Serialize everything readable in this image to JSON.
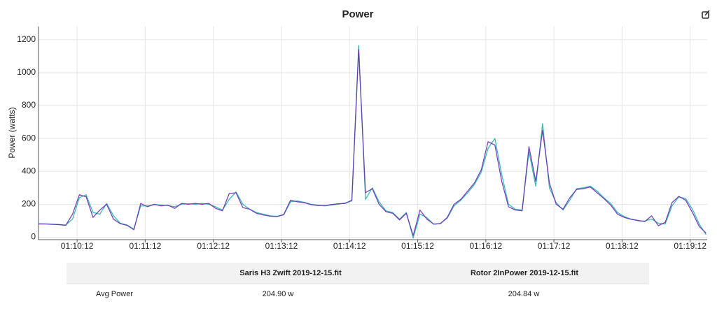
{
  "chart_data": {
    "type": "line",
    "title": "Power",
    "y_label": "Power (watts)",
    "x": [
      4178,
      4184,
      4190,
      4196,
      4202,
      4208,
      4214,
      4220,
      4226,
      4232,
      4238,
      4244,
      4250,
      4256,
      4262,
      4268,
      4274,
      4280,
      4286,
      4292,
      4298,
      4304,
      4310,
      4316,
      4322,
      4328,
      4334,
      4340,
      4346,
      4352,
      4358,
      4364,
      4370,
      4376,
      4382,
      4388,
      4394,
      4400,
      4406,
      4412,
      4418,
      4424,
      4430,
      4436,
      4442,
      4448,
      4454,
      4460,
      4466,
      4472,
      4478,
      4484,
      4490,
      4496,
      4502,
      4508,
      4514,
      4520,
      4526,
      4532,
      4538,
      4544,
      4550,
      4556,
      4562,
      4568,
      4574,
      4580,
      4586,
      4592,
      4598,
      4604,
      4610,
      4616,
      4622,
      4628,
      4634,
      4640,
      4646,
      4652,
      4658,
      4664,
      4670,
      4676,
      4682,
      4688,
      4694,
      4700,
      4706,
      4712,
      4718,
      4724,
      4730,
      4736,
      4742,
      4748,
      4754,
      4760,
      4766
    ],
    "series": [
      {
        "color": "#26b5a6",
        "values": [
          82,
          81,
          79,
          77,
          74,
          110,
          240,
          258,
          150,
          140,
          205,
          130,
          85,
          74,
          50,
          190,
          190,
          198,
          195,
          192,
          185,
          200,
          203,
          200,
          205,
          200,
          185,
          165,
          230,
          275,
          200,
          170,
          150,
          140,
          130,
          127,
          135,
          215,
          220,
          212,
          200,
          195,
          190,
          196,
          200,
          208,
          220,
          1165,
          230,
          300,
          215,
          160,
          150,
          110,
          150,
          -5,
          140,
          120,
          78,
          84,
          115,
          190,
          225,
          270,
          320,
          395,
          540,
          600,
          380,
          200,
          170,
          165,
          520,
          310,
          690,
          300,
          210,
          165,
          225,
          295,
          300,
          310,
          280,
          240,
          205,
          150,
          125,
          110,
          100,
          98,
          110,
          85,
          80,
          190,
          245,
          235,
          170,
          80,
          15
        ]
      },
      {
        "color": "#6a2fb8",
        "values": [
          80,
          80,
          78,
          76,
          72,
          140,
          258,
          245,
          120,
          165,
          200,
          110,
          82,
          72,
          45,
          205,
          185,
          200,
          190,
          195,
          175,
          205,
          200,
          205,
          200,
          205,
          175,
          160,
          265,
          270,
          180,
          170,
          145,
          135,
          128,
          125,
          138,
          225,
          215,
          210,
          198,
          192,
          192,
          198,
          203,
          205,
          225,
          1140,
          270,
          295,
          200,
          155,
          145,
          105,
          145,
          10,
          165,
          110,
          80,
          82,
          120,
          200,
          230,
          280,
          330,
          410,
          580,
          560,
          340,
          185,
          165,
          160,
          550,
          340,
          650,
          330,
          200,
          170,
          240,
          290,
          295,
          305,
          270,
          235,
          195,
          140,
          120,
          108,
          102,
          95,
          130,
          70,
          90,
          210,
          248,
          225,
          150,
          65,
          25
        ]
      }
    ],
    "xlim": [
      4178,
      4767
    ],
    "xticks": [
      {
        "value": 4212,
        "label": "01:10:12"
      },
      {
        "value": 4272,
        "label": "01:11:12"
      },
      {
        "value": 4332,
        "label": "01:12:12"
      },
      {
        "value": 4392,
        "label": "01:13:12"
      },
      {
        "value": 4452,
        "label": "01:14:12"
      },
      {
        "value": 4512,
        "label": "01:15:12"
      },
      {
        "value": 4572,
        "label": "01:16:12"
      },
      {
        "value": 4632,
        "label": "01:17:12"
      },
      {
        "value": 4692,
        "label": "01:18:12"
      },
      {
        "value": 4752,
        "label": "01:19:12"
      }
    ],
    "ylim": [
      -15,
      1280
    ],
    "yticks": [
      0,
      200,
      400,
      600,
      800,
      1000,
      1200
    ],
    "grid": true
  },
  "table": {
    "columns": [
      "Saris H3 Zwift 2019-12-15.fit",
      "Rotor 2InPower 2019-12-15.fit"
    ],
    "rows": [
      [
        "Avg Power",
        "204.90 w",
        "204.84 w"
      ]
    ]
  }
}
